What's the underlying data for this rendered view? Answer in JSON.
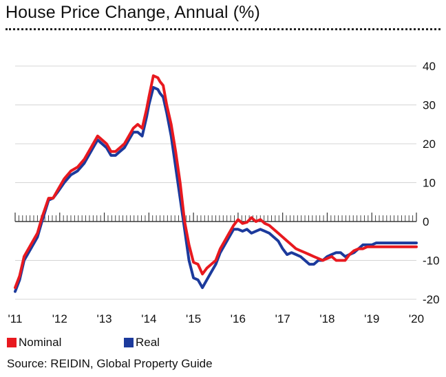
{
  "chart_data": {
    "type": "line",
    "title": "House Price Change, Annual (%)",
    "xlabel": "",
    "ylabel": "",
    "ylim": [
      -20,
      40
    ],
    "xlim": [
      2011.0,
      2020.0
    ],
    "y_ticks": [
      40,
      30,
      20,
      10,
      0,
      -10,
      -20
    ],
    "y_tick_labels": [
      "40",
      "30",
      "20",
      "10",
      "0",
      "-10",
      "-20"
    ],
    "x_ticks": [
      2011,
      2012,
      2013,
      2014,
      2015,
      2016,
      2017,
      2018,
      2019,
      2020
    ],
    "x_tick_labels": [
      "'11",
      "'12",
      "'13",
      "'14",
      "'15",
      "'16",
      "'17",
      "'18",
      "'19",
      "'20"
    ],
    "grid": "horizontal",
    "legend_placement": "bottom-left",
    "series": [
      {
        "name": "Nominal",
        "color": "#e8191f",
        "x": [
          2011.0,
          2011.1,
          2011.2,
          2011.35,
          2011.5,
          2011.6,
          2011.75,
          2011.85,
          2011.95,
          2012.1,
          2012.25,
          2012.4,
          2012.55,
          2012.7,
          2012.85,
          2012.95,
          2013.05,
          2013.15,
          2013.25,
          2013.35,
          2013.45,
          2013.55,
          2013.65,
          2013.75,
          2013.85,
          2013.95,
          2014.0,
          2014.1,
          2014.2,
          2014.25,
          2014.32,
          2014.4,
          2014.5,
          2014.6,
          2014.7,
          2014.8,
          2014.9,
          2015.0,
          2015.1,
          2015.2,
          2015.3,
          2015.4,
          2015.5,
          2015.6,
          2015.7,
          2015.8,
          2015.9,
          2016.0,
          2016.1,
          2016.2,
          2016.3,
          2016.4,
          2016.5,
          2016.6,
          2016.7,
          2016.8,
          2016.9,
          2017.0,
          2017.1,
          2017.2,
          2017.3,
          2017.4,
          2017.5,
          2017.6,
          2017.7,
          2017.8,
          2017.9,
          2018.0,
          2018.1,
          2018.2,
          2018.3,
          2018.4,
          2018.5,
          2018.6,
          2018.7,
          2018.8,
          2018.9,
          2019.0,
          2019.1,
          2019.2,
          2019.3,
          2019.4,
          2019.5,
          2019.6,
          2019.7,
          2019.8,
          2019.9,
          2020.0
        ],
        "values": [
          -17,
          -14,
          -9,
          -6,
          -3,
          1,
          6,
          6,
          8,
          11,
          13,
          14,
          16,
          19,
          22,
          21,
          20,
          18,
          18,
          19,
          20,
          22,
          24,
          25,
          24,
          29,
          32,
          37.5,
          37,
          36,
          35,
          30,
          25,
          18,
          10,
          0,
          -6,
          -10.5,
          -11,
          -13.5,
          -12,
          -11,
          -10,
          -7,
          -5,
          -3,
          -1,
          0.5,
          -0.5,
          -0.2,
          1,
          0,
          0.5,
          -0.5,
          -1,
          -2,
          -3,
          -4,
          -5,
          -6,
          -7,
          -7.5,
          -8,
          -8.5,
          -9,
          -9.5,
          -10,
          -9.5,
          -9,
          -10,
          -10,
          -10,
          -8.5,
          -7.5,
          -7,
          -7,
          -6.5,
          -6.5,
          -6.5,
          -6.5,
          -6.5,
          -6.5,
          -6.5,
          -6.5,
          -6.5,
          -6.5,
          -6.5,
          -6.5
        ]
      },
      {
        "name": "Real",
        "color": "#1c3a9c",
        "x": [
          2011.0,
          2011.1,
          2011.2,
          2011.35,
          2011.5,
          2011.6,
          2011.75,
          2011.85,
          2011.95,
          2012.1,
          2012.25,
          2012.4,
          2012.55,
          2012.7,
          2012.85,
          2012.95,
          2013.05,
          2013.15,
          2013.25,
          2013.35,
          2013.45,
          2013.55,
          2013.65,
          2013.75,
          2013.85,
          2013.95,
          2014.0,
          2014.1,
          2014.2,
          2014.25,
          2014.32,
          2014.4,
          2014.5,
          2014.6,
          2014.7,
          2014.8,
          2014.9,
          2015.0,
          2015.1,
          2015.2,
          2015.3,
          2015.4,
          2015.5,
          2015.6,
          2015.7,
          2015.8,
          2015.9,
          2016.0,
          2016.1,
          2016.2,
          2016.3,
          2016.4,
          2016.5,
          2016.6,
          2016.7,
          2016.8,
          2016.9,
          2017.0,
          2017.1,
          2017.2,
          2017.3,
          2017.4,
          2017.5,
          2017.6,
          2017.7,
          2017.8,
          2017.9,
          2018.0,
          2018.1,
          2018.2,
          2018.3,
          2018.4,
          2018.5,
          2018.6,
          2018.7,
          2018.8,
          2018.9,
          2019.0,
          2019.1,
          2019.2,
          2019.3,
          2019.4,
          2019.5,
          2019.6,
          2019.7,
          2019.8,
          2019.9,
          2020.0
        ],
        "values": [
          -18,
          -15,
          -10,
          -7,
          -4,
          0,
          5.5,
          6,
          7.5,
          10,
          12,
          13,
          15,
          18,
          21,
          20,
          19,
          17,
          17,
          18,
          19,
          21,
          23,
          23,
          22,
          27,
          30,
          34.5,
          34,
          33,
          32,
          28,
          22,
          14,
          6,
          -2,
          -10,
          -14.5,
          -15,
          -17,
          -15,
          -13,
          -11,
          -8,
          -6,
          -4,
          -2,
          -2,
          -2.5,
          -2,
          -3,
          -2.5,
          -2,
          -2.5,
          -3,
          -4,
          -5,
          -7,
          -8.5,
          -8,
          -8.5,
          -9,
          -10,
          -11,
          -11,
          -10,
          -10,
          -9,
          -8.5,
          -8,
          -8,
          -9,
          -8.5,
          -8,
          -7,
          -6,
          -6,
          -6,
          -5.5,
          -5.5,
          -5.5,
          -5.5,
          -5.5,
          -5.5,
          -5.5,
          -5.5,
          -5.5,
          -5.5
        ]
      }
    ],
    "source": "Source: REIDIN, Global Property Guide"
  }
}
